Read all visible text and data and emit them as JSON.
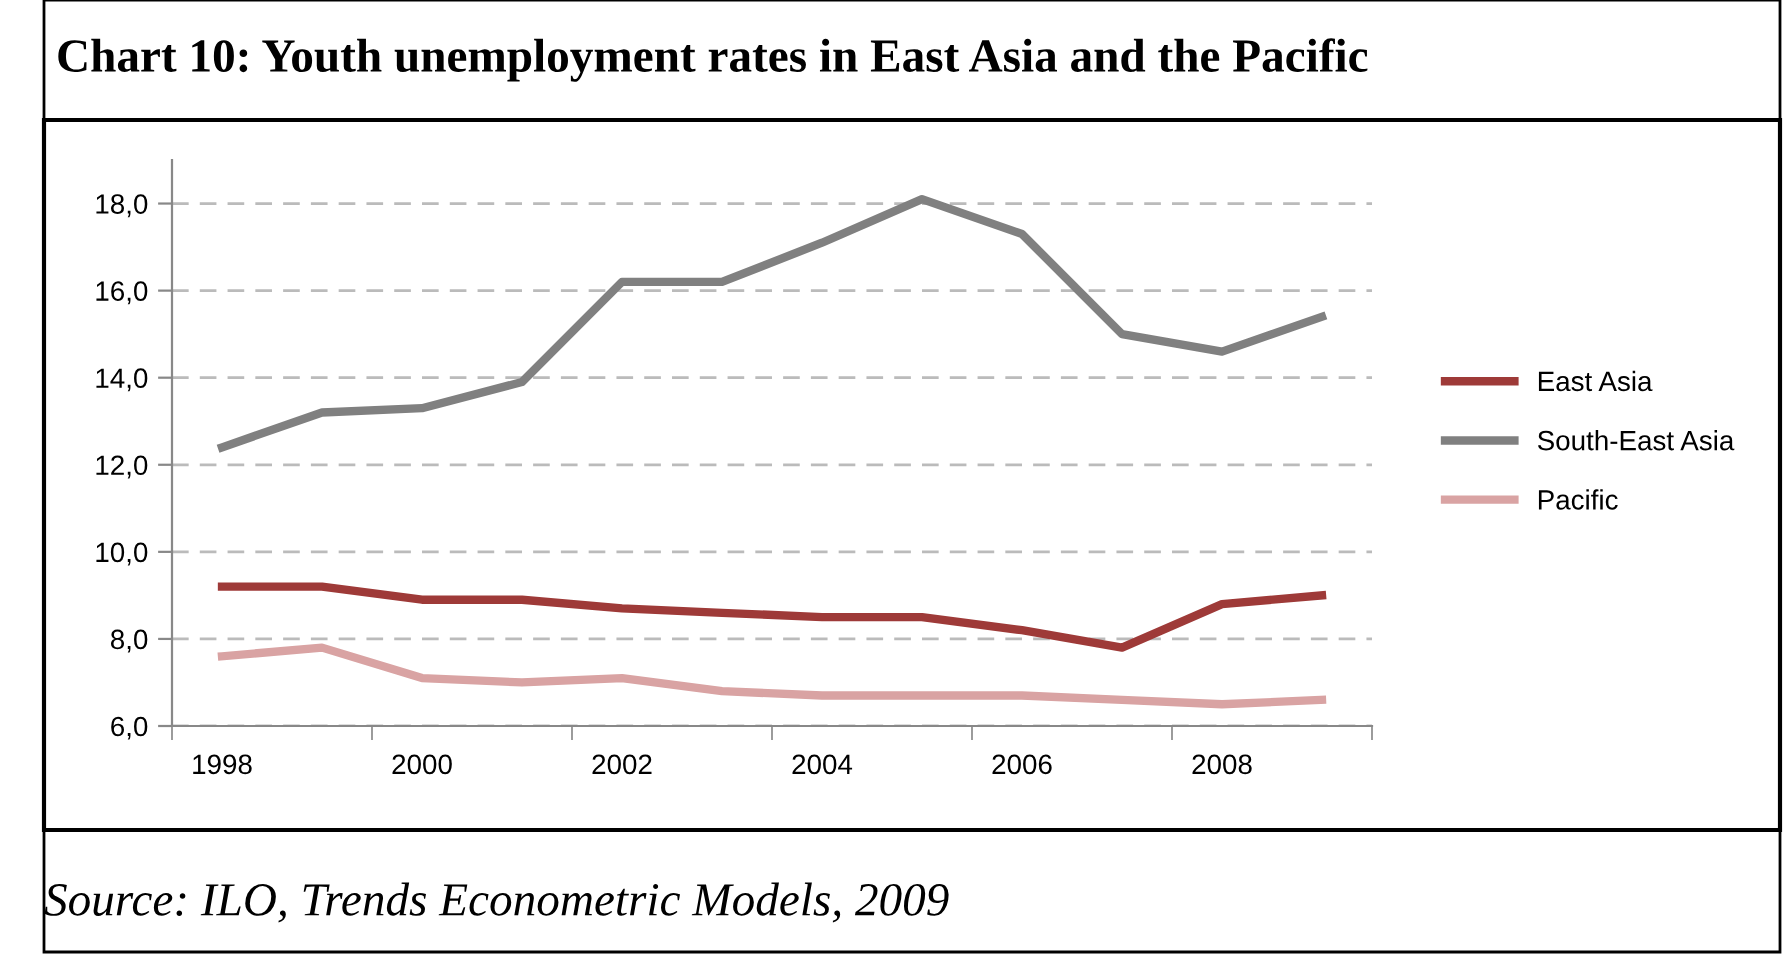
{
  "chart_data": {
    "type": "line",
    "title": "Chart 10: Youth unemployment rates in East Asia and the Pacific",
    "categories": [
      "1998",
      null,
      "2000",
      null,
      "2002",
      null,
      "2004",
      null,
      "2006",
      null,
      "2008",
      null
    ],
    "series": [
      {
        "name": "East Asia",
        "color": "#9e3a38",
        "values": [
          9.2,
          9.2,
          8.9,
          8.9,
          8.7,
          8.6,
          8.5,
          8.5,
          8.2,
          7.8,
          8.8,
          9.0
        ]
      },
      {
        "name": "South-East Asia",
        "color": "#808080",
        "values": [
          12.4,
          13.2,
          13.3,
          13.9,
          16.2,
          16.2,
          17.1,
          18.1,
          17.3,
          15.0,
          14.6,
          15.4
        ]
      },
      {
        "name": "Pacific",
        "color": "#d9a3a3",
        "values": [
          7.6,
          7.8,
          7.1,
          7.0,
          7.1,
          6.8,
          6.7,
          6.7,
          6.7,
          6.6,
          6.5,
          6.6
        ]
      }
    ],
    "ylim": [
      6,
      19
    ],
    "yticks": [
      {
        "value": 6,
        "label": "6,0"
      },
      {
        "value": 8,
        "label": "8,0"
      },
      {
        "value": 10,
        "label": "10,0"
      },
      {
        "value": 12,
        "label": "12,0"
      },
      {
        "value": 14,
        "label": "14,0"
      },
      {
        "value": 16,
        "label": "16,0"
      },
      {
        "value": 18,
        "label": "18,0"
      }
    ],
    "grid": "y",
    "legend": "right",
    "marker": "none",
    "line_style": "solid",
    "annotations": [
      "Source: ILO, Trends Econometric Models, 2009"
    ]
  }
}
